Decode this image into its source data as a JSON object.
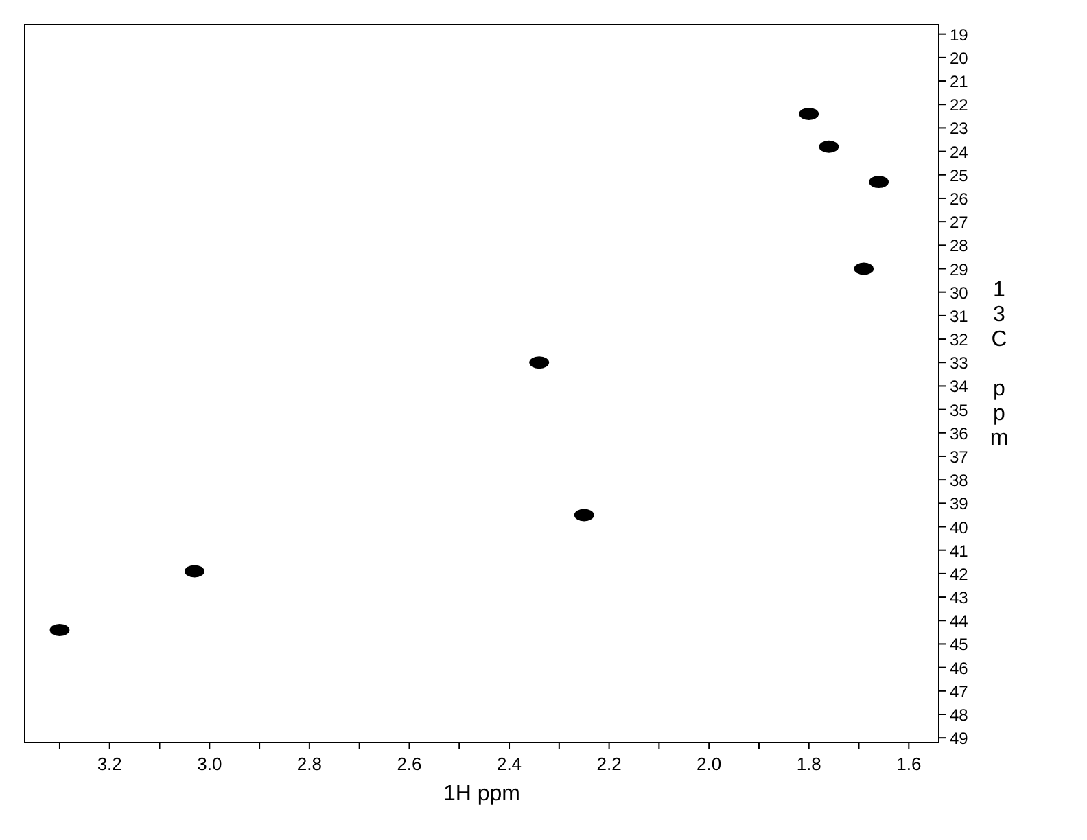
{
  "chart_data": {
    "type": "scatter",
    "xlabel": "1H ppm",
    "ylabel": "13C ppm",
    "x": [
      3.3,
      3.03,
      2.34,
      2.25,
      1.8,
      1.76,
      1.66,
      1.69
    ],
    "series": [
      {
        "color": "#000000",
        "values": [
          44.4,
          41.9,
          33.0,
          39.5,
          22.4,
          23.8,
          25.3,
          29.0
        ]
      }
    ],
    "marker": "circle",
    "xlim": [
      3.37,
      1.54
    ],
    "ylim": [
      49.2,
      18.6
    ],
    "xticks": [
      {
        "value": 3.3,
        "label": null
      },
      3.2,
      {
        "value": 3.1,
        "label": null
      },
      {
        "value": 3.0,
        "label": "3.0"
      },
      {
        "value": 2.9,
        "label": null
      },
      2.8,
      {
        "value": 2.7,
        "label": null
      },
      2.6,
      {
        "value": 2.5,
        "label": null
      },
      2.4,
      {
        "value": 2.3,
        "label": null
      },
      2.2,
      {
        "value": 2.1,
        "label": null
      },
      {
        "value": 2.0,
        "label": "2.0"
      },
      {
        "value": 1.9,
        "label": null
      },
      1.8,
      {
        "value": 1.7,
        "label": null
      },
      1.6
    ],
    "yticks": [
      19,
      20,
      21,
      22,
      23,
      24,
      25,
      26,
      27,
      28,
      29,
      30,
      31,
      32,
      33,
      34,
      35,
      36,
      37,
      38,
      39,
      40,
      41,
      42,
      43,
      44,
      45,
      46,
      47,
      48,
      49
    ]
  }
}
